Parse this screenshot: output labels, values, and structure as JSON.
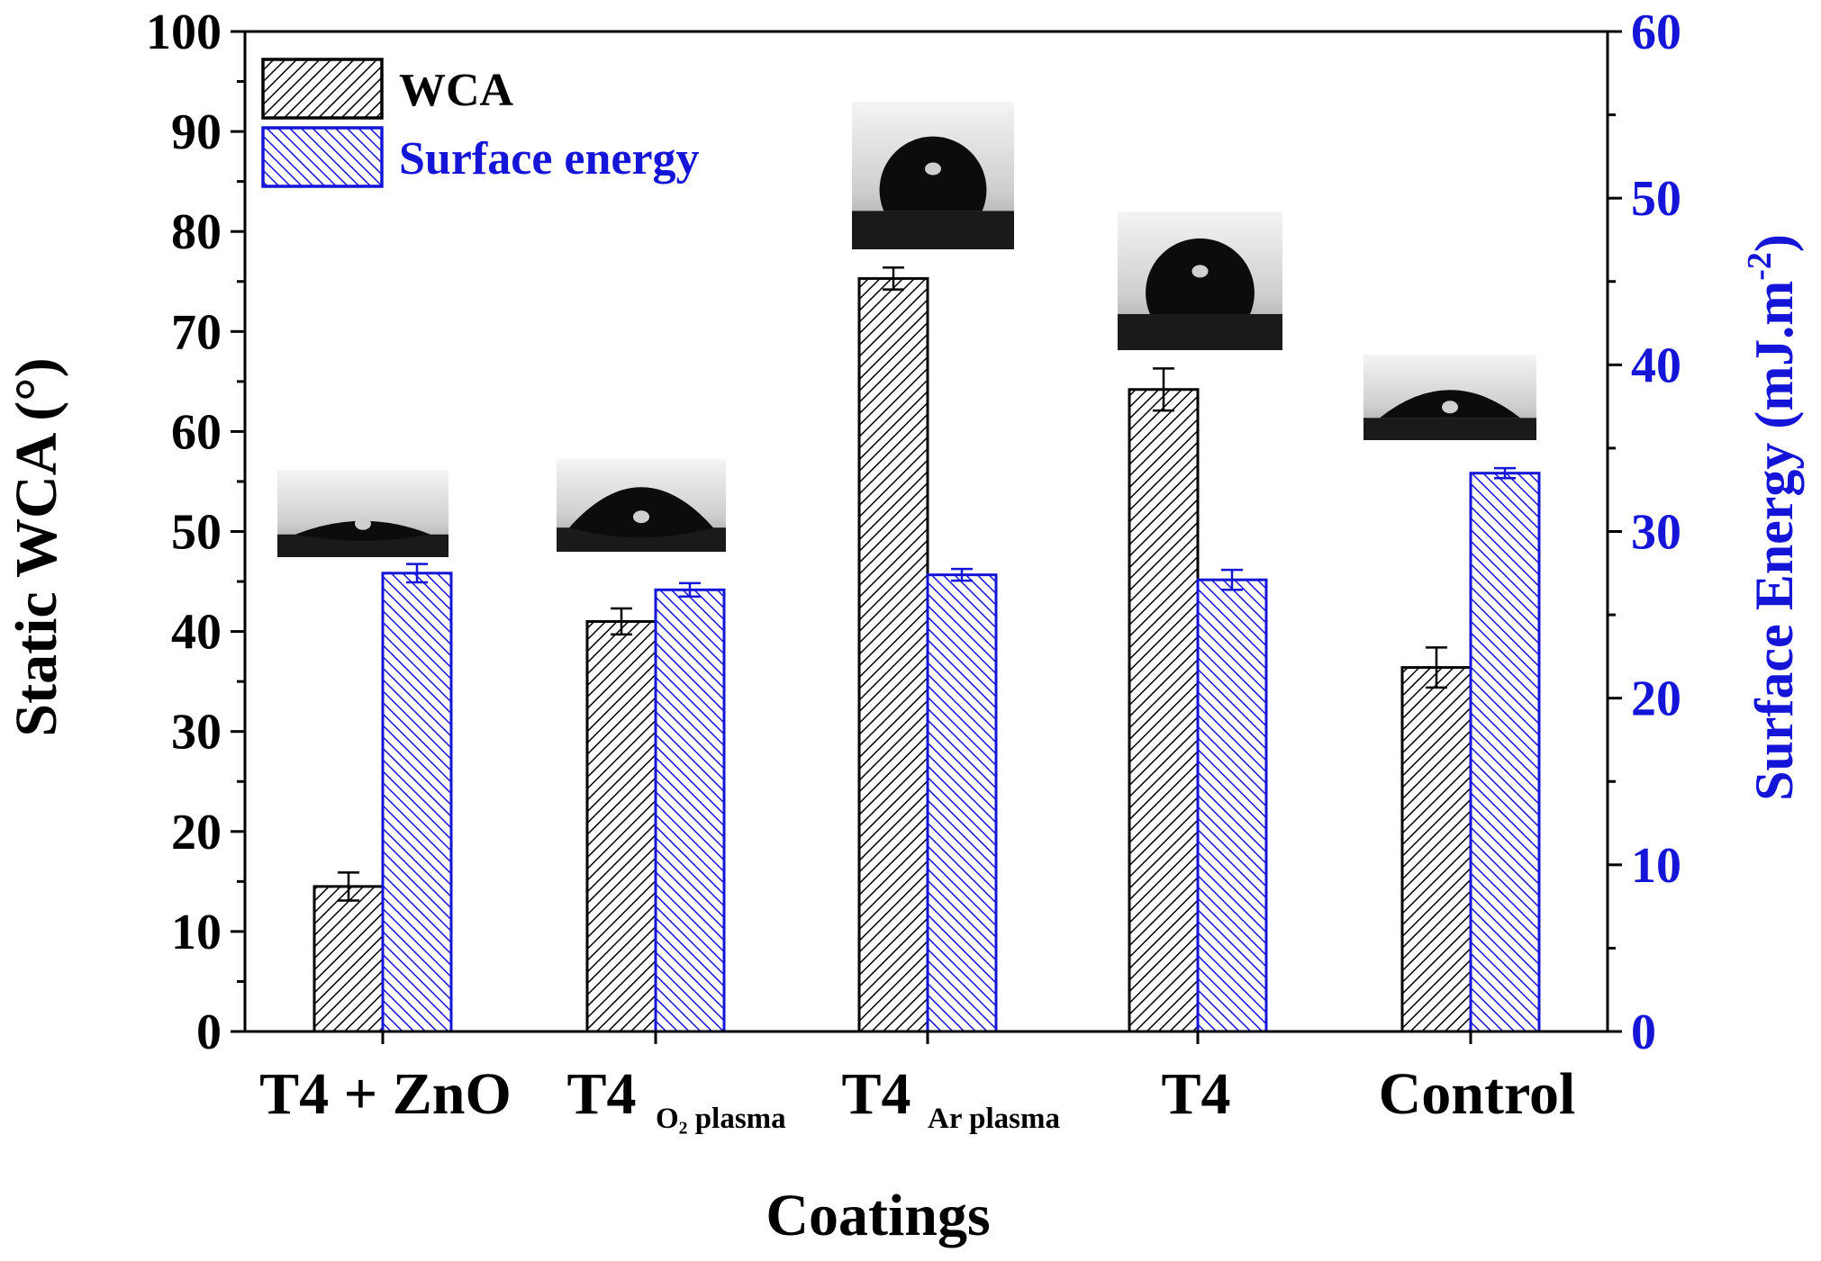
{
  "chart_data": {
    "type": "bar",
    "title": "",
    "xlabel": "Coatings",
    "ylabel": "Static WCA (°)",
    "y2label": "Surface Energy (mJ.m",
    "y2label_exp": "-2",
    "y2label_close": ")",
    "ylim": [
      0,
      100
    ],
    "y2lim": [
      0,
      60
    ],
    "yticks": [
      "0",
      "10",
      "20",
      "30",
      "40",
      "50",
      "60",
      "70",
      "80",
      "90",
      "100"
    ],
    "y2ticks": [
      "0",
      "10",
      "20",
      "30",
      "40",
      "50",
      "60"
    ],
    "legend_position": "top-left",
    "categories": [
      {
        "main": "T4 + ZnO",
        "sub": ""
      },
      {
        "main": "T4",
        "sub": "O₂ plasma"
      },
      {
        "main": "T4",
        "sub": "Ar plasma"
      },
      {
        "main": "T4",
        "sub": ""
      },
      {
        "main": "Control",
        "sub": ""
      }
    ],
    "series": [
      {
        "name": "WCA",
        "axis": "left",
        "color": "#000000",
        "values": [
          14.5,
          41.0,
          75.3,
          64.2,
          36.4
        ],
        "errors": [
          1.4,
          1.3,
          1.1,
          2.1,
          2.0
        ]
      },
      {
        "name": "Surface energy",
        "axis": "right",
        "color": "#1515d8",
        "values": [
          27.5,
          26.5,
          27.4,
          27.1,
          33.5
        ],
        "errors": [
          0.55,
          0.4,
          0.35,
          0.6,
          0.3
        ]
      }
    ]
  },
  "droplet_images": [
    "flat-droplet",
    "lens-droplet",
    "round-droplet",
    "round-droplet",
    "dome-droplet"
  ],
  "colors": {
    "wca": "#000000",
    "energy": "#1515d8",
    "background": "#ffffff"
  }
}
